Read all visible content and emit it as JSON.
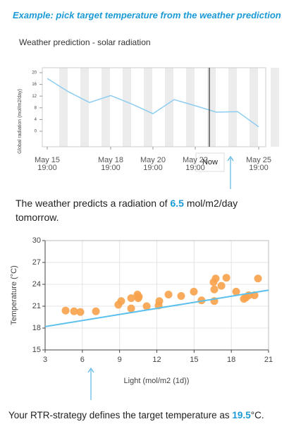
{
  "header": {
    "title": "Example: pick target temperature from the weather prediction"
  },
  "chart_data": [
    {
      "type": "line",
      "title": "Weather prediction - solar radiation",
      "y_label": "Global radiation (mol/m2/day)",
      "categories": [
        "May 15\n19:00",
        null,
        null,
        "May 18\n19:00",
        null,
        "May 20\n19:00",
        null,
        "May 22\n19:00",
        null,
        null,
        "May 25\n19:00"
      ],
      "values": [
        18,
        13.5,
        9.8,
        12.2,
        9.3,
        6,
        10.8,
        8.7,
        6.5,
        6.7,
        1.5
      ],
      "color": "#8ecdf0",
      "ylim": [
        0,
        20
      ],
      "yticks": [
        0,
        4,
        8,
        12,
        16,
        20
      ],
      "annotation": "Now"
    },
    {
      "type": "scatter",
      "x_label": "Light (mol/m2 (1d))",
      "y_label": "Temperature (°C)",
      "x": [
        4.65,
        5.33,
        5.84,
        7.09,
        8.9,
        9.13,
        9.93,
        9.93,
        10.44,
        10.5,
        10.55,
        11.18,
        12.14,
        12.2,
        12.94,
        13.96,
        14.98,
        15.6,
        16.57,
        16.63,
        16.63,
        16.74,
        17.2,
        17.6,
        18.39,
        19.01,
        19.18,
        19.41,
        19.87,
        20.15
      ],
      "y": [
        20.4,
        20.3,
        20.2,
        20.3,
        21.2,
        21.7,
        20.7,
        22.1,
        22.6,
        22.1,
        22.3,
        21.0,
        21.1,
        21.7,
        22.6,
        22.4,
        23.0,
        21.8,
        24.3,
        23.3,
        21.7,
        24.8,
        23.8,
        24.9,
        23.0,
        22.0,
        22.2,
        22.5,
        22.5,
        24.8
      ],
      "color": "#f7a24b",
      "trendline": {
        "x": [
          3,
          21
        ],
        "y": [
          18.2,
          23.2
        ],
        "color": "#5bc0eb"
      },
      "xlim": [
        3,
        21
      ],
      "xticks": [
        3,
        6,
        9,
        12,
        15,
        18,
        21
      ],
      "ylim": [
        15,
        30
      ],
      "yticks": [
        15,
        18,
        21,
        24,
        27,
        30
      ],
      "grid": true
    }
  ],
  "notes": [
    {
      "before": "The weather predicts a radiation of ",
      "highlight": "6.5",
      "after": " mol/m2/day tomorrow."
    },
    {
      "before": "Your RTR-strategy defines the target temperature as ",
      "highlight": "19.5",
      "after": "°C."
    }
  ]
}
